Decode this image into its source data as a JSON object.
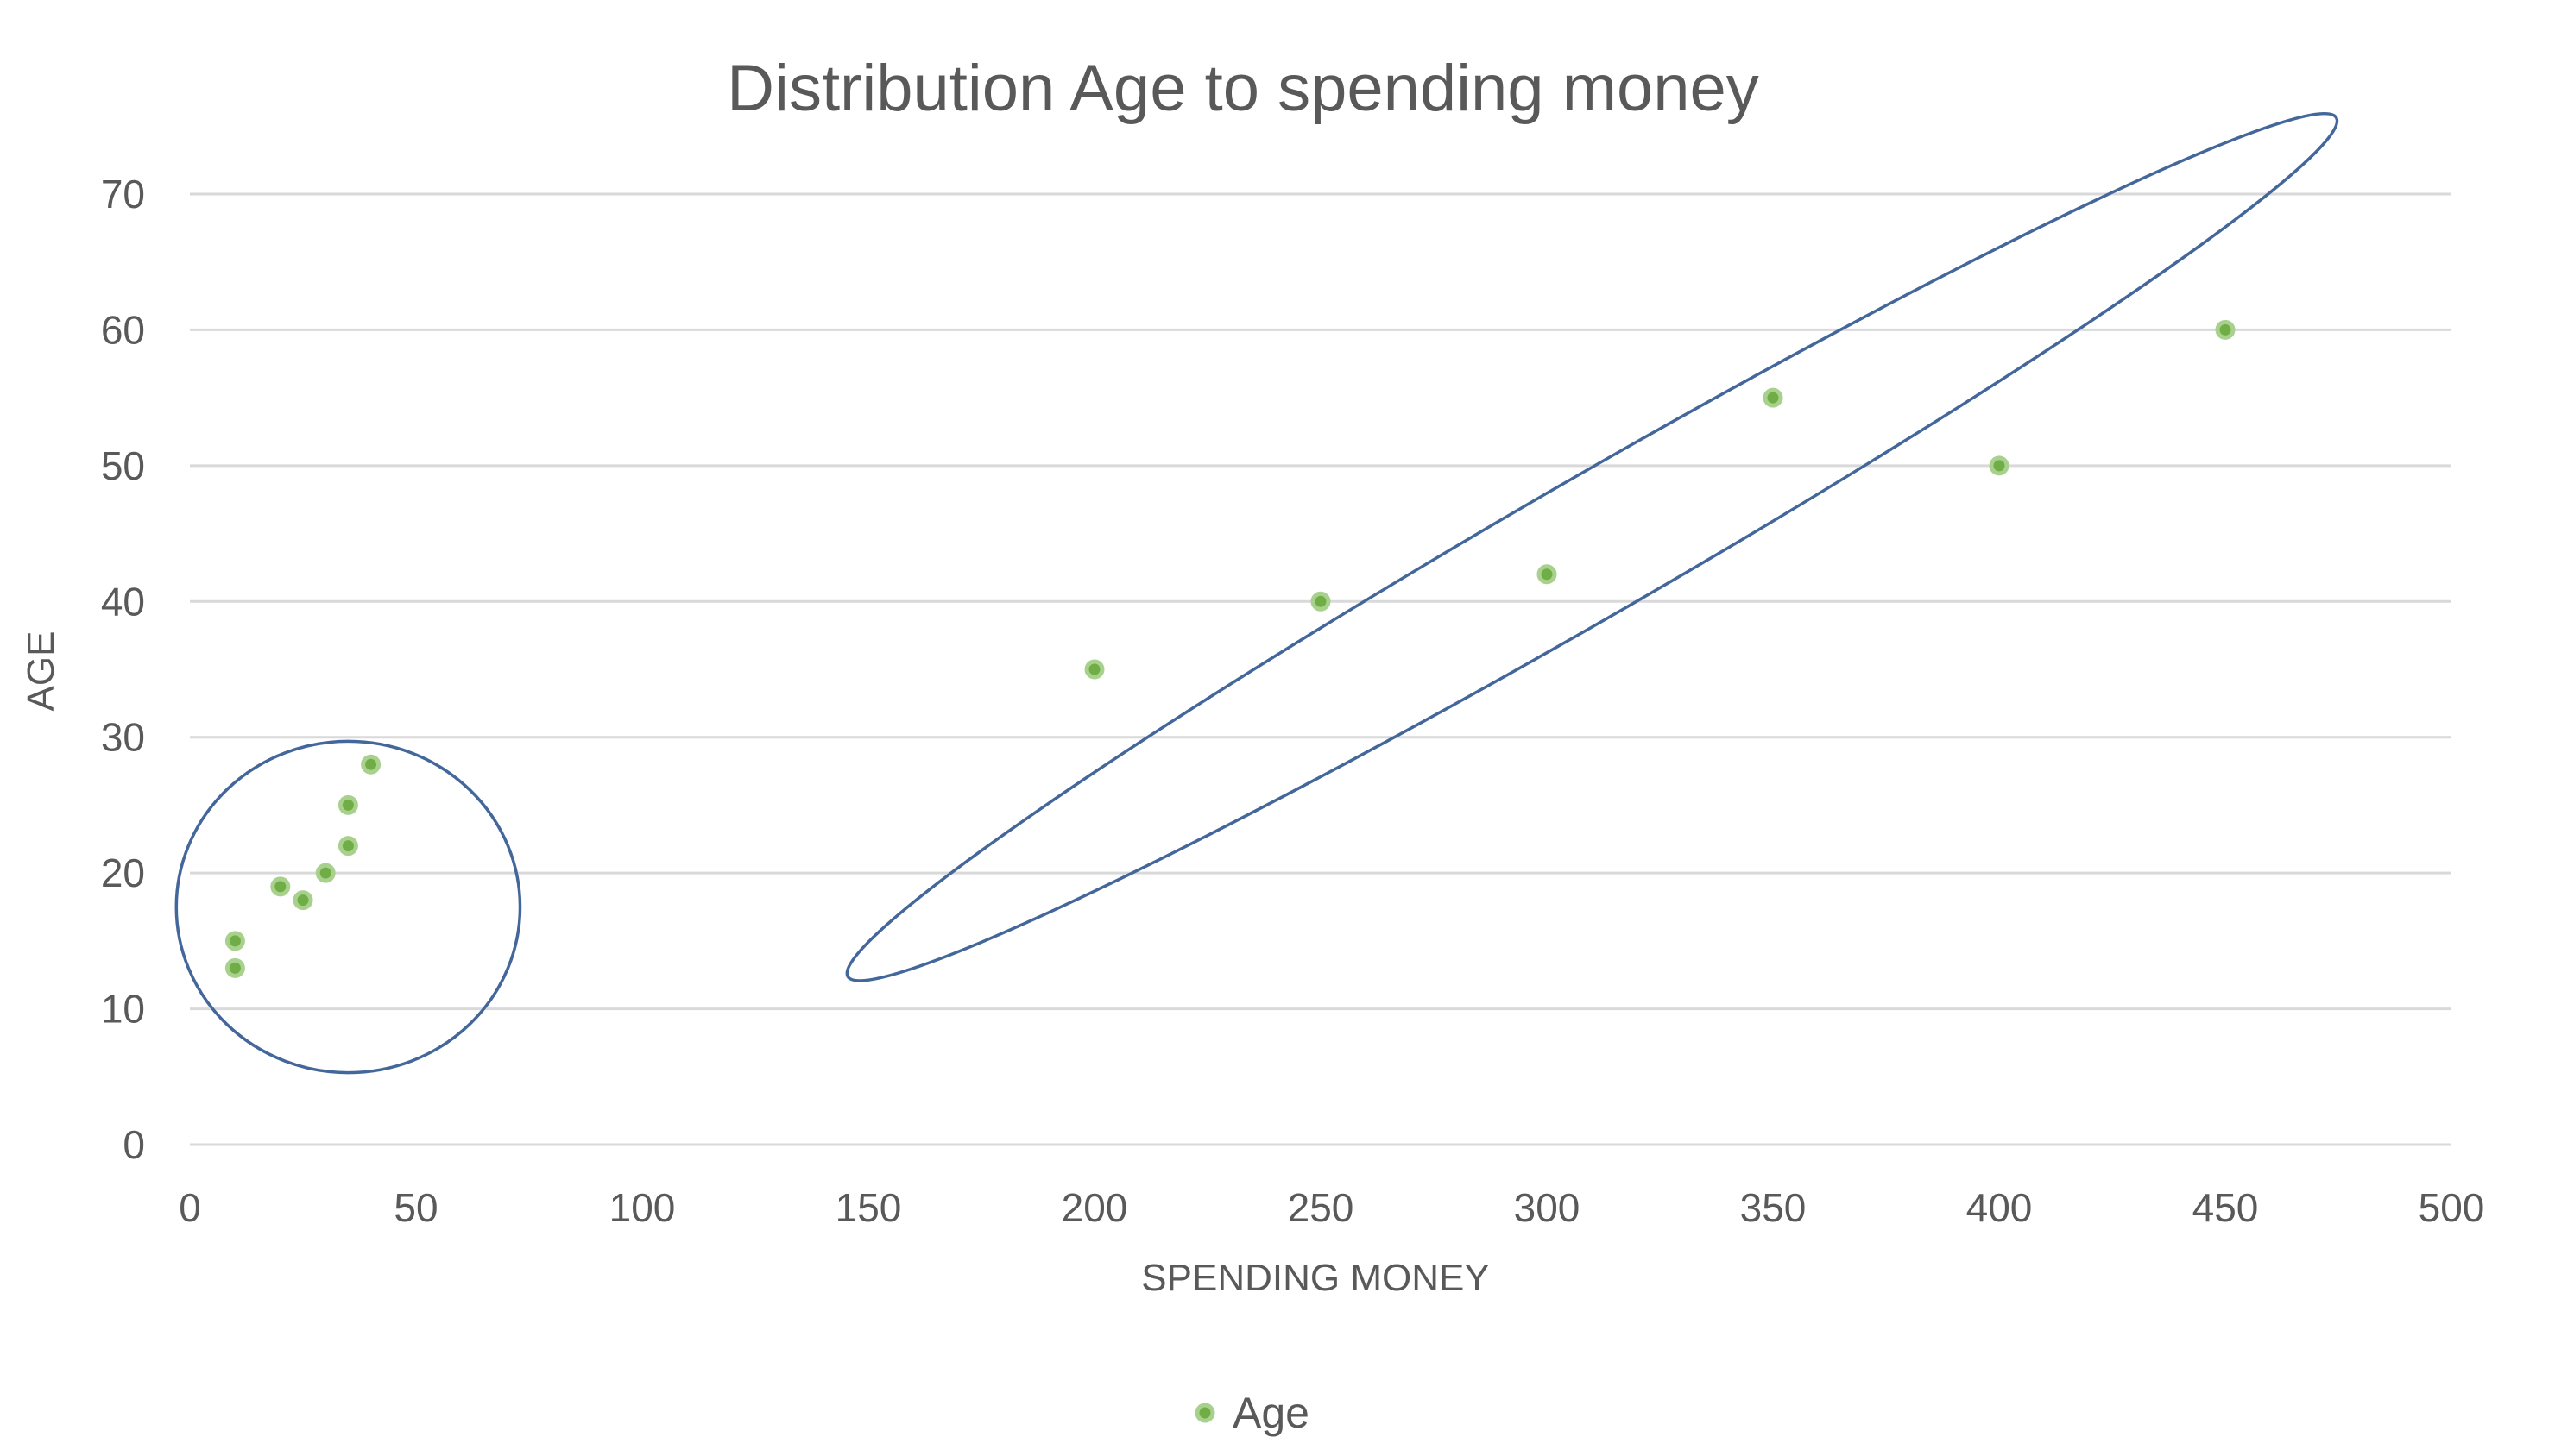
{
  "chart_data": {
    "type": "scatter",
    "title": "Distribution Age to spending money",
    "xlabel": "SPENDING MONEY",
    "ylabel": "AGE",
    "xlim": [
      0,
      500
    ],
    "ylim": [
      0,
      70
    ],
    "x_ticks": [
      0,
      50,
      100,
      150,
      200,
      250,
      300,
      350,
      400,
      450,
      500
    ],
    "y_ticks": [
      0,
      10,
      20,
      30,
      40,
      50,
      60,
      70
    ],
    "grid": true,
    "legend_position": "bottom",
    "series": [
      {
        "name": "Age",
        "color": "#70ad47",
        "points": [
          {
            "x": 10,
            "y": 13
          },
          {
            "x": 10,
            "y": 15
          },
          {
            "x": 20,
            "y": 19
          },
          {
            "x": 25,
            "y": 18
          },
          {
            "x": 30,
            "y": 20
          },
          {
            "x": 35,
            "y": 22
          },
          {
            "x": 35,
            "y": 25
          },
          {
            "x": 40,
            "y": 28
          },
          {
            "x": 200,
            "y": 35
          },
          {
            "x": 250,
            "y": 40
          },
          {
            "x": 300,
            "y": 42
          },
          {
            "x": 350,
            "y": 55
          },
          {
            "x": 400,
            "y": 50
          },
          {
            "x": 450,
            "y": 60
          }
        ]
      }
    ],
    "annotations": [
      {
        "shape": "circle",
        "color": "#44679b",
        "cx": 35,
        "cy": 17.5,
        "rx": 38,
        "ry": 12.2
      },
      {
        "shape": "ellipse",
        "color": "#44679b",
        "cx": 310,
        "cy": 44,
        "rx": 190,
        "ry": 5.1,
        "angle_deg": -30
      }
    ]
  }
}
